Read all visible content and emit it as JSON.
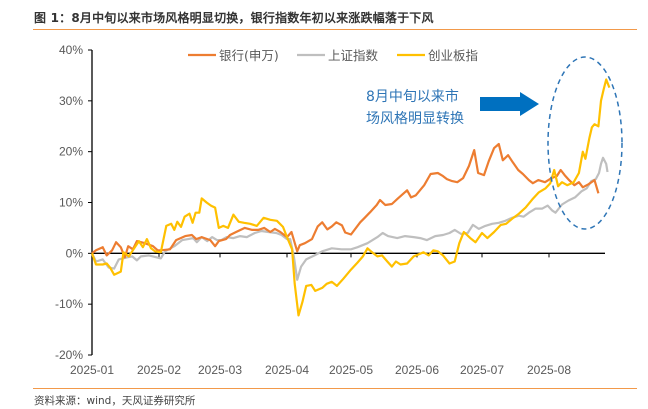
{
  "header": {
    "title": "图 1：8月中旬以来市场风格明显切换，银行指数年初以来涨跌幅落于下风"
  },
  "footer": {
    "source": "资料来源：wind，天风证券研究所"
  },
  "annotation": {
    "line1": "8月中旬以来市",
    "line2": "场风格明显转换",
    "color": "#2E75B6",
    "arrow_color": "#0070C0",
    "highlight": "dashed-ellipse-around-august"
  },
  "chart_data": {
    "type": "line",
    "title": "8月中旬以来市场风格明显切换，银行指数年初以来涨跌幅落于下风",
    "xlabel": "",
    "ylabel": "",
    "ylim": [
      -20,
      40
    ],
    "yticks": [
      -20,
      -10,
      0,
      10,
      20,
      30,
      40
    ],
    "ytick_labels": [
      "-20%",
      "-10%",
      "0%",
      "10%",
      "20%",
      "30%",
      "40%"
    ],
    "xtick_labels": [
      "2025-01",
      "2025-02",
      "2025-03",
      "2025-04",
      "2025-05",
      "2025-06",
      "2025-07",
      "2025-08"
    ],
    "x_unit": "months since 2025-01 (fractional)",
    "xlim": [
      0,
      8.85
    ],
    "grid": false,
    "legend_position": "top",
    "series": [
      {
        "name": "银行(申万)",
        "color": "#ED7D31",
        "points": [
          [
            0,
            0
          ],
          [
            0.06,
            0.6
          ],
          [
            0.16,
            1.2
          ],
          [
            0.22,
            -0.4
          ],
          [
            0.3,
            0.6
          ],
          [
            0.36,
            2.2
          ],
          [
            0.43,
            1.2
          ],
          [
            0.49,
            -0.8
          ],
          [
            0.54,
            1.4
          ],
          [
            0.61,
            0.8
          ],
          [
            0.67,
            2.4
          ],
          [
            0.79,
            2.0
          ],
          [
            0.91,
            1.4
          ],
          [
            0.98,
            0.6
          ],
          [
            1.03,
            0.6
          ],
          [
            1.18,
            0.8
          ],
          [
            1.28,
            2.6
          ],
          [
            1.43,
            3.4
          ],
          [
            1.54,
            3.6
          ],
          [
            1.61,
            2.8
          ],
          [
            1.7,
            3.2
          ],
          [
            1.84,
            2.6
          ],
          [
            1.92,
            1.4
          ],
          [
            1.98,
            2.4
          ],
          [
            2.09,
            2.8
          ],
          [
            2.15,
            3.6
          ],
          [
            2.24,
            4.2
          ],
          [
            2.37,
            5.0
          ],
          [
            2.48,
            4.6
          ],
          [
            2.57,
            4.6
          ],
          [
            2.66,
            5.0
          ],
          [
            2.75,
            4.2
          ],
          [
            2.82,
            4.8
          ],
          [
            2.9,
            4.2
          ],
          [
            3.0,
            3.2
          ],
          [
            3.07,
            4.2
          ],
          [
            3.16,
            0.4
          ],
          [
            3.2,
            1.6
          ],
          [
            3.28,
            2.0
          ],
          [
            3.39,
            2.8
          ],
          [
            3.48,
            5.3
          ],
          [
            3.55,
            6.1
          ],
          [
            3.63,
            4.7
          ],
          [
            3.7,
            5.3
          ],
          [
            3.77,
            6.1
          ],
          [
            3.86,
            5.5
          ],
          [
            3.91,
            4.1
          ],
          [
            4.0,
            3.7
          ],
          [
            4.14,
            6.1
          ],
          [
            4.2,
            6.9
          ],
          [
            4.29,
            8.1
          ],
          [
            4.39,
            9.5
          ],
          [
            4.44,
            10.5
          ],
          [
            4.52,
            9.5
          ],
          [
            4.62,
            9.7
          ],
          [
            4.71,
            10.8
          ],
          [
            4.85,
            12.4
          ],
          [
            4.91,
            11.0
          ],
          [
            4.98,
            11.4
          ],
          [
            5.11,
            13.4
          ],
          [
            5.21,
            15.6
          ],
          [
            5.32,
            15.8
          ],
          [
            5.4,
            15.2
          ],
          [
            5.46,
            14.6
          ],
          [
            5.54,
            14.2
          ],
          [
            5.62,
            14.0
          ],
          [
            5.71,
            14.8
          ],
          [
            5.8,
            17.2
          ],
          [
            5.88,
            20.3
          ],
          [
            5.94,
            15.8
          ],
          [
            6.03,
            15.4
          ],
          [
            6.1,
            18.1
          ],
          [
            6.18,
            20.7
          ],
          [
            6.25,
            21.5
          ],
          [
            6.31,
            18.3
          ],
          [
            6.39,
            19.3
          ],
          [
            6.46,
            17.9
          ],
          [
            6.54,
            16.4
          ],
          [
            6.61,
            15.6
          ],
          [
            6.7,
            14.4
          ],
          [
            6.76,
            13.8
          ],
          [
            6.84,
            14.4
          ],
          [
            6.94,
            14.0
          ],
          [
            7.04,
            14.8
          ],
          [
            7.12,
            15.2
          ],
          [
            7.18,
            16.4
          ],
          [
            7.24,
            15.4
          ],
          [
            7.31,
            14.4
          ],
          [
            7.39,
            13.4
          ],
          [
            7.46,
            14.0
          ],
          [
            7.52,
            13.0
          ],
          [
            7.61,
            13.6
          ],
          [
            7.7,
            14.4
          ],
          [
            7.76,
            11.8
          ]
        ]
      },
      {
        "name": "上证指数",
        "color": "#BFBFBF",
        "points": [
          [
            0,
            0
          ],
          [
            0.06,
            -1.6
          ],
          [
            0.16,
            -1.2
          ],
          [
            0.25,
            -2.8
          ],
          [
            0.33,
            -3.0
          ],
          [
            0.4,
            -1.2
          ],
          [
            0.52,
            -0.8
          ],
          [
            0.6,
            -0.6
          ],
          [
            0.67,
            -1.4
          ],
          [
            0.73,
            -0.6
          ],
          [
            0.85,
            -0.4
          ],
          [
            0.97,
            -0.8
          ],
          [
            1.03,
            -1.0
          ],
          [
            1.1,
            0.4
          ],
          [
            1.25,
            1.4
          ],
          [
            1.38,
            2.6
          ],
          [
            1.48,
            2.8
          ],
          [
            1.56,
            3.0
          ],
          [
            1.62,
            2.2
          ],
          [
            1.7,
            3.2
          ],
          [
            1.79,
            2.4
          ],
          [
            1.87,
            3.2
          ],
          [
            1.95,
            2.6
          ],
          [
            2.02,
            2.6
          ],
          [
            2.1,
            3.2
          ],
          [
            2.2,
            3.0
          ],
          [
            2.3,
            3.4
          ],
          [
            2.4,
            3.2
          ],
          [
            2.52,
            4.0
          ],
          [
            2.62,
            4.4
          ],
          [
            2.72,
            4.2
          ],
          [
            2.84,
            4.0
          ],
          [
            2.92,
            3.6
          ],
          [
            3.0,
            2.8
          ],
          [
            3.05,
            2.8
          ],
          [
            3.11,
            -0.8
          ],
          [
            3.16,
            -5.2
          ],
          [
            3.22,
            -2.6
          ],
          [
            3.3,
            -1.2
          ],
          [
            3.43,
            -0.4
          ],
          [
            3.55,
            0.4
          ],
          [
            3.7,
            1.0
          ],
          [
            3.85,
            0.8
          ],
          [
            4.0,
            0.8
          ],
          [
            4.1,
            1.2
          ],
          [
            4.25,
            2.0
          ],
          [
            4.4,
            3.2
          ],
          [
            4.48,
            4.0
          ],
          [
            4.56,
            3.4
          ],
          [
            4.7,
            3.0
          ],
          [
            4.82,
            3.4
          ],
          [
            4.95,
            3.2
          ],
          [
            5.05,
            3.0
          ],
          [
            5.15,
            2.6
          ],
          [
            5.28,
            3.4
          ],
          [
            5.4,
            3.6
          ],
          [
            5.5,
            4.0
          ],
          [
            5.58,
            4.6
          ],
          [
            5.68,
            3.8
          ],
          [
            5.78,
            4.0
          ],
          [
            5.86,
            5.6
          ],
          [
            5.95,
            4.8
          ],
          [
            6.05,
            5.4
          ],
          [
            6.15,
            5.8
          ],
          [
            6.25,
            6.0
          ],
          [
            6.35,
            6.4
          ],
          [
            6.45,
            7.0
          ],
          [
            6.55,
            7.4
          ],
          [
            6.62,
            7.2
          ],
          [
            6.7,
            8.0
          ],
          [
            6.8,
            8.8
          ],
          [
            6.9,
            8.8
          ],
          [
            6.98,
            9.4
          ],
          [
            7.05,
            8.4
          ],
          [
            7.1,
            8.0
          ],
          [
            7.2,
            9.6
          ],
          [
            7.3,
            10.4
          ],
          [
            7.4,
            11.0
          ],
          [
            7.5,
            12.2
          ],
          [
            7.58,
            12.8
          ],
          [
            7.65,
            14.2
          ],
          [
            7.72,
            14.6
          ],
          [
            7.77,
            15.8
          ],
          [
            7.8,
            17.6
          ],
          [
            7.83,
            18.8
          ],
          [
            7.88,
            17.6
          ],
          [
            7.9,
            16.0
          ]
        ]
      },
      {
        "name": "创业板指",
        "color": "#FFC000",
        "points": [
          [
            0,
            0
          ],
          [
            0.06,
            -2.2
          ],
          [
            0.16,
            -2.2
          ],
          [
            0.22,
            -2.0
          ],
          [
            0.27,
            -2.8
          ],
          [
            0.33,
            -4.2
          ],
          [
            0.43,
            -3.6
          ],
          [
            0.47,
            0.2
          ],
          [
            0.55,
            -0.6
          ],
          [
            0.62,
            0.8
          ],
          [
            0.7,
            2.4
          ],
          [
            0.76,
            1.2
          ],
          [
            0.82,
            2.8
          ],
          [
            0.88,
            1.0
          ],
          [
            0.94,
            0.4
          ],
          [
            1.03,
            0.2
          ],
          [
            1.12,
            5.4
          ],
          [
            1.2,
            5.8
          ],
          [
            1.25,
            4.6
          ],
          [
            1.3,
            6.2
          ],
          [
            1.36,
            5.2
          ],
          [
            1.42,
            7.2
          ],
          [
            1.5,
            7.8
          ],
          [
            1.55,
            6.0
          ],
          [
            1.6,
            8.0
          ],
          [
            1.66,
            8.0
          ],
          [
            1.7,
            10.8
          ],
          [
            1.78,
            10.0
          ],
          [
            1.85,
            9.4
          ],
          [
            1.92,
            9.0
          ],
          [
            1.98,
            5.0
          ],
          [
            2.05,
            5.4
          ],
          [
            2.12,
            5.0
          ],
          [
            2.2,
            7.6
          ],
          [
            2.28,
            6.2
          ],
          [
            2.36,
            6.0
          ],
          [
            2.45,
            5.8
          ],
          [
            2.55,
            5.4
          ],
          [
            2.65,
            7.0
          ],
          [
            2.75,
            6.6
          ],
          [
            2.85,
            6.4
          ],
          [
            2.94,
            5.2
          ],
          [
            3.0,
            3.2
          ],
          [
            3.08,
            0.8
          ],
          [
            3.12,
            -6.0
          ],
          [
            3.18,
            -12.2
          ],
          [
            3.24,
            -9.6
          ],
          [
            3.3,
            -6.4
          ],
          [
            3.38,
            -6.2
          ],
          [
            3.44,
            -7.4
          ],
          [
            3.55,
            -6.8
          ],
          [
            3.62,
            -6.0
          ],
          [
            3.7,
            -5.6
          ],
          [
            3.78,
            -6.4
          ],
          [
            3.88,
            -5.0
          ],
          [
            4.0,
            -3.2
          ],
          [
            4.1,
            -1.8
          ],
          [
            4.18,
            -0.6
          ],
          [
            4.25,
            1.0
          ],
          [
            4.32,
            0.2
          ],
          [
            4.4,
            -0.6
          ],
          [
            4.47,
            -0.4
          ],
          [
            4.55,
            -1.6
          ],
          [
            4.62,
            -2.6
          ],
          [
            4.68,
            -1.6
          ],
          [
            4.75,
            -2.2
          ],
          [
            4.85,
            -2.0
          ],
          [
            4.95,
            -0.6
          ],
          [
            5.03,
            -0.2
          ],
          [
            5.1,
            0.2
          ],
          [
            5.18,
            -0.4
          ],
          [
            5.25,
            0.6
          ],
          [
            5.32,
            0.4
          ],
          [
            5.4,
            -0.4
          ],
          [
            5.5,
            -2.0
          ],
          [
            5.58,
            -1.6
          ],
          [
            5.65,
            2.0
          ],
          [
            5.72,
            4.2
          ],
          [
            5.82,
            3.0
          ],
          [
            5.9,
            2.2
          ],
          [
            6.0,
            4.0
          ],
          [
            6.08,
            3.0
          ],
          [
            6.18,
            4.2
          ],
          [
            6.28,
            5.6
          ],
          [
            6.36,
            5.8
          ],
          [
            6.45,
            6.8
          ],
          [
            6.55,
            7.8
          ],
          [
            6.65,
            9.0
          ],
          [
            6.75,
            10.6
          ],
          [
            6.85,
            12.0
          ],
          [
            6.95,
            12.8
          ],
          [
            7.02,
            13.8
          ],
          [
            7.08,
            16.4
          ],
          [
            7.14,
            13.2
          ],
          [
            7.2,
            14.0
          ],
          [
            7.28,
            13.4
          ],
          [
            7.38,
            14.0
          ],
          [
            7.46,
            15.8
          ],
          [
            7.52,
            20.0
          ],
          [
            7.56,
            18.6
          ],
          [
            7.62,
            22.6
          ],
          [
            7.66,
            24.8
          ],
          [
            7.7,
            25.4
          ],
          [
            7.76,
            25.0
          ],
          [
            7.8,
            30.0
          ],
          [
            7.84,
            32.2
          ],
          [
            7.88,
            34.2
          ],
          [
            7.93,
            32.6
          ]
        ]
      }
    ]
  }
}
